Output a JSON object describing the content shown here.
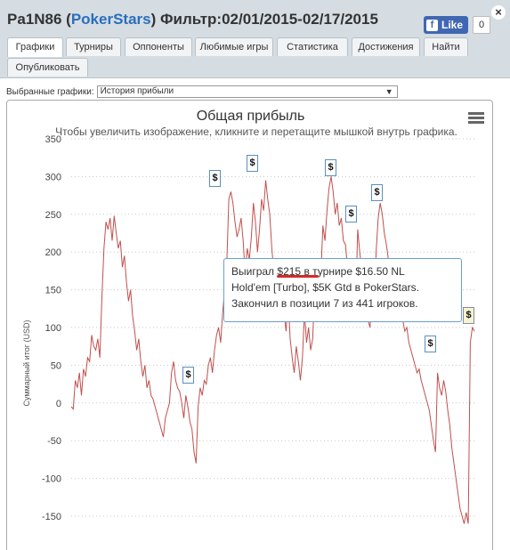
{
  "header": {
    "player": "Pa1N86",
    "site": "PokerStars",
    "filter": "Фильтр:02/01/2015-02/17/2015"
  },
  "like": {
    "label": "Like",
    "count": "0",
    "icon": "facebook-icon"
  },
  "close_label": "×",
  "tabs": [
    "Графики",
    "Турниры",
    "Оппоненты",
    "Любимые игры",
    "Статистика",
    "Достижения",
    "Найти",
    "Опубликовать"
  ],
  "selector": {
    "label": "Выбранные графики:",
    "value": "История прибыли"
  },
  "chart_data": {
    "type": "line",
    "title": "Общая прибыль",
    "subtitle": "Чтобы увеличить изображение, кликните и перетащите мышкой внутрь графика.",
    "ylabel": "Суммарный итог (USD)",
    "xlabel": "",
    "ylim": [
      -150,
      350
    ],
    "yticks": [
      "350",
      "300",
      "250",
      "200",
      "150",
      "100",
      "50",
      "0",
      "-50",
      "-100",
      "-150"
    ],
    "grid": "horizontal-dotted",
    "line_color": "#c0504d",
    "series": [
      {
        "values": [
          -5,
          -8,
          30,
          20,
          40,
          10,
          45,
          35,
          60,
          55,
          90,
          75,
          70,
          85,
          60,
          140,
          205,
          240,
          230,
          245,
          215,
          248,
          225,
          205,
          215,
          180,
          195,
          160,
          135,
          150,
          115,
          95,
          70,
          85,
          55,
          35,
          50,
          20,
          30,
          10,
          5,
          -5,
          -15,
          -25,
          -35,
          -45,
          -20,
          -10,
          0,
          40,
          55,
          30,
          20,
          15,
          0,
          -20,
          10,
          -5,
          -25,
          -35,
          -65,
          -80,
          -5,
          20,
          10,
          30,
          25,
          50,
          60,
          40,
          70,
          90,
          100,
          80,
          120,
          150,
          185,
          270,
          280,
          265,
          240,
          220,
          230,
          245,
          215,
          170,
          205,
          190,
          220,
          265,
          240,
          200,
          230,
          270,
          255,
          295,
          270,
          250,
          205,
          175,
          150,
          130,
          145,
          110,
          120,
          95,
          140,
          85,
          60,
          40,
          75,
          55,
          30,
          60,
          120,
          80,
          100,
          70,
          85,
          150,
          130,
          190,
          170,
          235,
          215,
          255,
          285,
          300,
          280,
          250,
          265,
          235,
          245,
          215,
          210,
          180,
          160,
          140,
          120,
          130,
          230,
          200,
          175,
          150,
          130,
          110,
          100,
          140,
          120,
          200,
          245,
          265,
          250,
          225,
          210,
          190,
          170,
          160,
          150,
          140,
          130,
          120,
          110,
          95,
          100,
          80,
          70,
          60,
          50,
          40,
          45,
          30,
          20,
          10,
          0,
          -10,
          -30,
          -50,
          -65,
          40,
          20,
          10,
          30,
          15,
          -10,
          -30,
          -60,
          -80,
          -100,
          -120,
          -140,
          -150,
          -160,
          -145,
          -160,
          80,
          100,
          95
        ]
      }
    ],
    "markers": [
      "$",
      "$",
      "$",
      "$",
      "$",
      "$",
      "$",
      "$"
    ],
    "tooltip": {
      "line1_before": "Выиграл ",
      "amount": "$215",
      "line1_after": " в турнире $16.50 NL",
      "line2": "Hold'em [Turbo], $5K Gtd в PokerStars.",
      "line3": "Закончил в позиции 7 из 441 игроков."
    }
  },
  "menu_icon": "hamburger-menu-icon"
}
